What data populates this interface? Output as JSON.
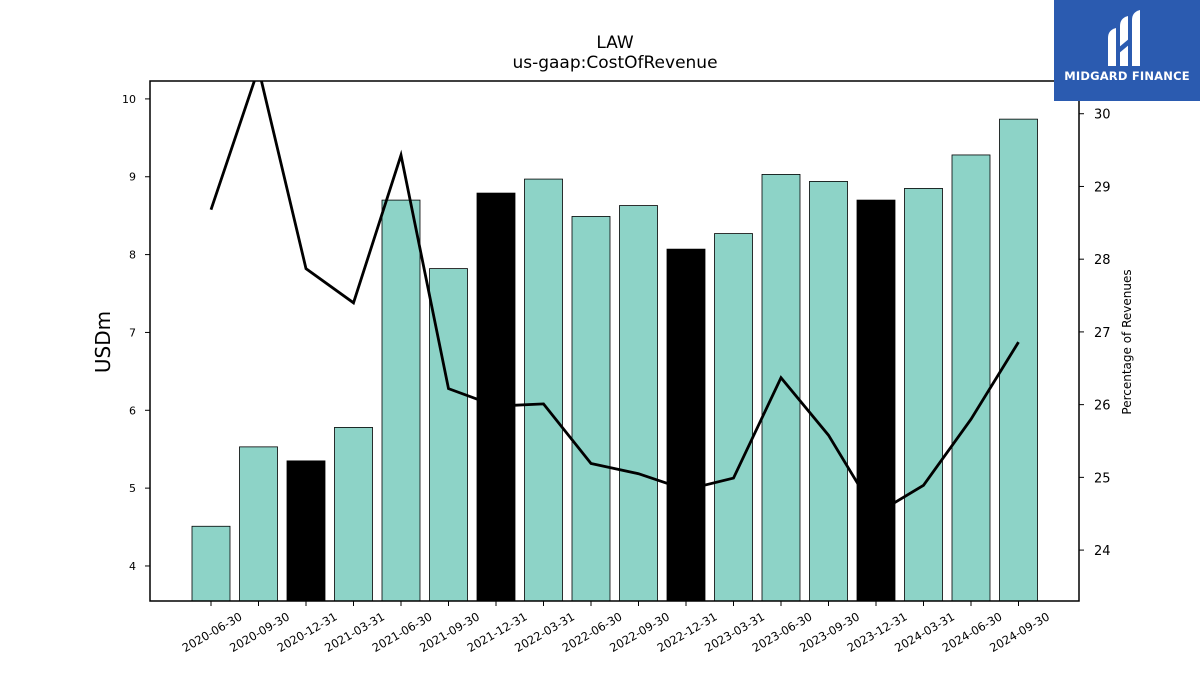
{
  "logo": {
    "text": "MIDGARD FINANCE",
    "color": "#2b5bb0"
  },
  "chart_data": {
    "type": "bar",
    "title": "LAW",
    "subtitle": "us-gaap:CostOfRevenue",
    "ylabel": "USDm",
    "y2label": "Percentage of Revenues",
    "ylim": [
      3.55,
      10.23
    ],
    "y2lim": [
      23.3,
      30.45
    ],
    "yticks": [
      4,
      5,
      6,
      7,
      8,
      9,
      10
    ],
    "y2ticks": [
      24,
      25,
      26,
      27,
      28,
      29,
      30
    ],
    "grid": false,
    "categories": [
      "2020-06-30",
      "2020-09-30",
      "2020-12-31",
      "2021-03-31",
      "2021-06-30",
      "2021-09-30",
      "2021-12-31",
      "2022-03-31",
      "2022-06-30",
      "2022-09-30",
      "2022-12-31",
      "2023-03-31",
      "2023-06-30",
      "2023-09-30",
      "2023-12-31",
      "2024-03-31",
      "2024-06-30",
      "2024-09-30"
    ],
    "series": [
      {
        "type": "bar",
        "values": [
          4.51,
          5.53,
          5.35,
          5.78,
          8.7,
          7.82,
          8.79,
          8.97,
          8.49,
          8.63,
          8.07,
          8.27,
          9.03,
          8.94,
          8.7,
          8.85,
          9.28,
          9.74
        ],
        "highlight": [
          false,
          false,
          true,
          false,
          false,
          false,
          true,
          false,
          false,
          false,
          true,
          false,
          false,
          false,
          true,
          false,
          false,
          false
        ]
      },
      {
        "type": "line",
        "axis": "right",
        "values": [
          28.68,
          30.62,
          27.87,
          27.4,
          29.43,
          26.22,
          25.98,
          26.01,
          25.19,
          25.05,
          24.83,
          24.99,
          26.37,
          25.58,
          24.5,
          24.89,
          25.8,
          26.86
        ]
      }
    ],
    "colors": {
      "bar": "#8dd3c7",
      "highlight": "#000000",
      "line": "#000000"
    }
  }
}
